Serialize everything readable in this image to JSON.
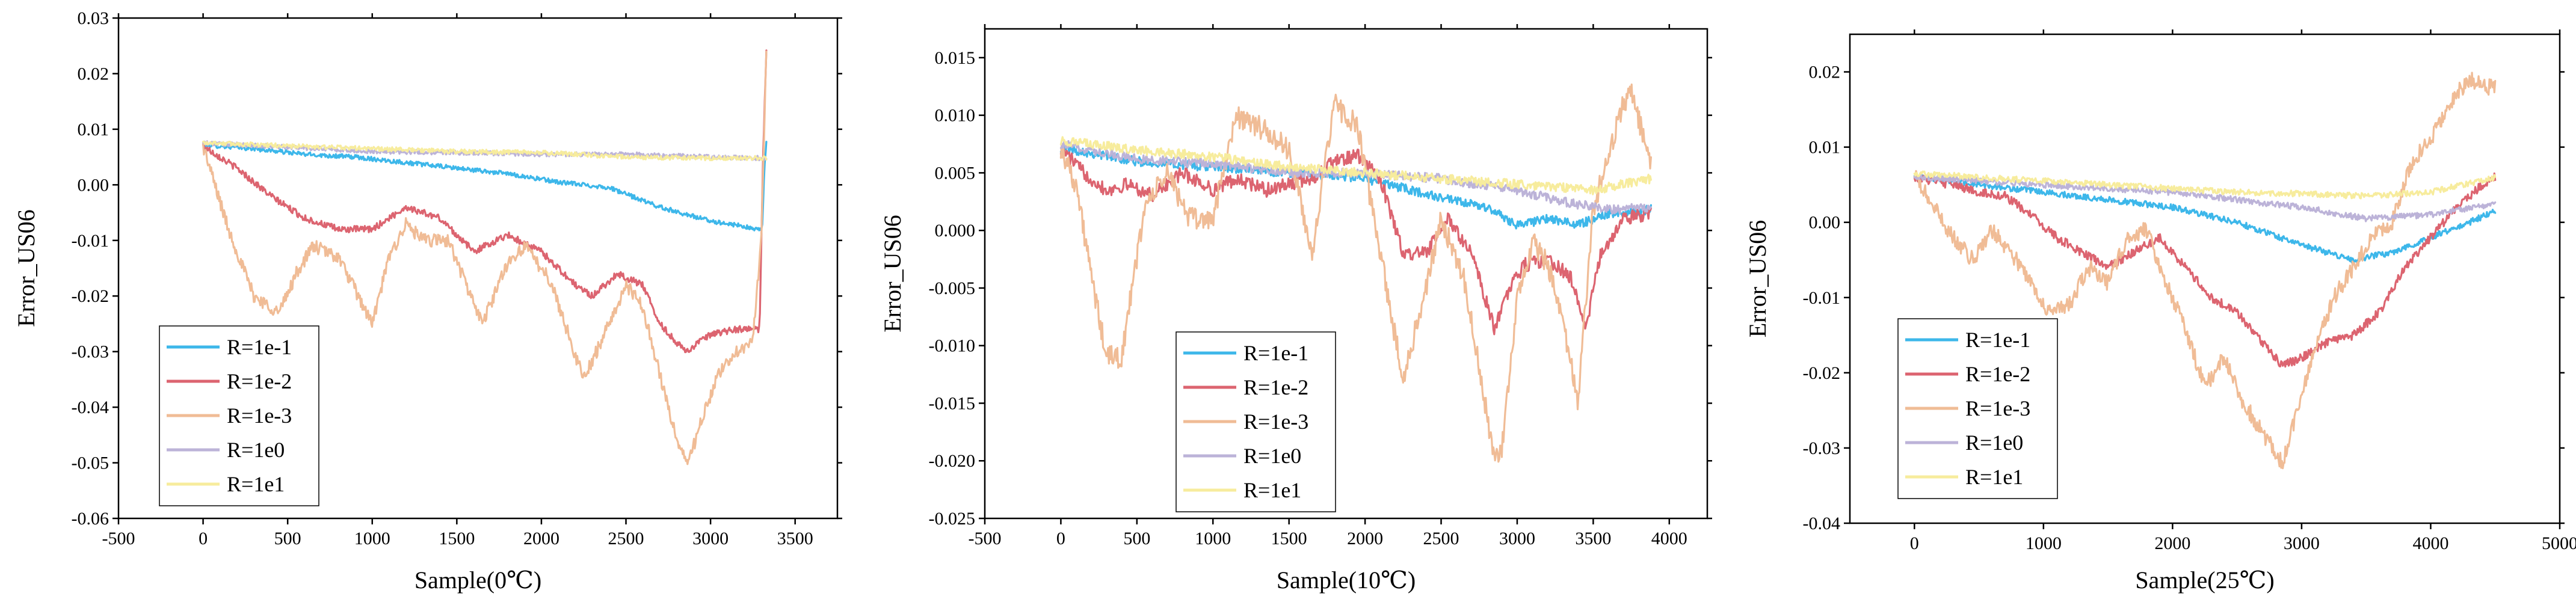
{
  "chart_data": [
    {
      "type": "line",
      "title": "",
      "xlabel": "Sample(0℃)",
      "ylabel": "Error_US06",
      "xlim": [
        -500,
        3750
      ],
      "ylim": [
        -0.06,
        0.03
      ],
      "xticks": [
        -500,
        0,
        500,
        1000,
        1500,
        2000,
        2500,
        3000,
        3500
      ],
      "xtick_labels": [
        "-500",
        "0",
        "500",
        "1000",
        "1500",
        "2000",
        "2500",
        "3000",
        "3500"
      ],
      "yticks": [
        -0.06,
        -0.05,
        -0.04,
        -0.03,
        -0.02,
        -0.01,
        0.0,
        0.01,
        0.02,
        0.03
      ],
      "ytick_labels": [
        "-0.06",
        "-0.05",
        "-0.04",
        "-0.03",
        "-0.02",
        "-0.01",
        "0.00",
        "0.01",
        "0.02",
        "0.03"
      ],
      "grid": false,
      "legend_position": "bottom-left",
      "series": [
        {
          "name": "R=1e-1",
          "color": "#3db7ea",
          "noise": 0.0004,
          "x": [
            0,
            300,
            600,
            900,
            1200,
            1500,
            1800,
            2100,
            2400,
            2700,
            3000,
            3200,
            3290,
            3305,
            3320,
            3330
          ],
          "y": [
            0.0072,
            0.0065,
            0.0055,
            0.005,
            0.004,
            0.003,
            0.002,
            0.0005,
            -0.0005,
            -0.004,
            -0.0065,
            -0.0075,
            -0.0082,
            -0.008,
            0.004,
            0.0075
          ]
        },
        {
          "name": "R=1e-2",
          "color": "#dc6470",
          "noise": 0.0006,
          "x": [
            0,
            200,
            400,
            600,
            800,
            1000,
            1200,
            1400,
            1600,
            1800,
            2000,
            2200,
            2300,
            2450,
            2600,
            2700,
            2850,
            3000,
            3150,
            3290,
            3310,
            3330
          ],
          "y": [
            0.007,
            0.003,
            -0.002,
            -0.006,
            -0.008,
            -0.008,
            -0.004,
            -0.006,
            -0.012,
            -0.009,
            -0.012,
            -0.018,
            -0.02,
            -0.016,
            -0.018,
            -0.025,
            -0.03,
            -0.027,
            -0.026,
            -0.026,
            0.005,
            0.024
          ]
        },
        {
          "name": "R=1e-3",
          "color": "#f0bc96",
          "noise": 0.0012,
          "x": [
            0,
            150,
            300,
            450,
            550,
            650,
            800,
            1000,
            1100,
            1200,
            1300,
            1450,
            1650,
            1800,
            1900,
            2050,
            2250,
            2400,
            2500,
            2600,
            2700,
            2800,
            2870,
            2950,
            3050,
            3150,
            3250,
            3300,
            3330
          ],
          "y": [
            0.007,
            -0.008,
            -0.02,
            -0.023,
            -0.016,
            -0.011,
            -0.013,
            -0.025,
            -0.013,
            -0.007,
            -0.01,
            -0.01,
            -0.025,
            -0.014,
            -0.011,
            -0.017,
            -0.035,
            -0.025,
            -0.018,
            -0.022,
            -0.034,
            -0.046,
            -0.05,
            -0.042,
            -0.034,
            -0.03,
            -0.028,
            -0.01,
            0.024
          ]
        },
        {
          "name": "R=1e0",
          "color": "#bcb3d8",
          "noise": 0.0004,
          "x": [
            0,
            500,
            1000,
            1500,
            2000,
            2500,
            3000,
            3330
          ],
          "y": [
            0.0075,
            0.0068,
            0.006,
            0.0058,
            0.0055,
            0.0055,
            0.005,
            0.0048
          ]
        },
        {
          "name": "R=1e1",
          "color": "#f7ec9d",
          "noise": 0.0004,
          "x": [
            0,
            500,
            1000,
            1500,
            2000,
            2500,
            3000,
            3330
          ],
          "y": [
            0.0076,
            0.007,
            0.0065,
            0.006,
            0.0058,
            0.005,
            0.0048,
            0.0048
          ]
        }
      ]
    },
    {
      "type": "line",
      "title": "",
      "xlabel": "Sample(10℃)",
      "ylabel": "Error_US06",
      "xlim": [
        -500,
        4250
      ],
      "ylim": [
        -0.025,
        0.0175
      ],
      "xticks": [
        -500,
        0,
        500,
        1000,
        1500,
        2000,
        2500,
        3000,
        3500,
        4000
      ],
      "xtick_labels": [
        "-500",
        "0",
        "500",
        "1000",
        "1500",
        "2000",
        "2500",
        "3000",
        "3500",
        "4000"
      ],
      "yticks": [
        -0.025,
        -0.02,
        -0.015,
        -0.01,
        -0.005,
        0.0,
        0.005,
        0.01,
        0.015
      ],
      "ytick_labels": [
        "-0.025",
        "-0.020",
        "-0.015",
        "-0.010",
        "-0.005",
        "0.000",
        "0.005",
        "0.010",
        "0.015"
      ],
      "grid": false,
      "legend_position": "bottom-center",
      "series": [
        {
          "name": "R=1e-1",
          "color": "#3db7ea",
          "noise": 0.0004,
          "x": [
            0,
            500,
            1000,
            1500,
            2000,
            2300,
            2600,
            2800,
            3000,
            3200,
            3400,
            3600,
            3880
          ],
          "y": [
            0.0072,
            0.006,
            0.0055,
            0.005,
            0.0045,
            0.0035,
            0.0025,
            0.002,
            0.0005,
            0.001,
            0.0005,
            0.0015,
            0.0018
          ]
        },
        {
          "name": "R=1e-2",
          "color": "#dc6470",
          "noise": 0.0006,
          "x": [
            0,
            150,
            300,
            450,
            600,
            800,
            1000,
            1150,
            1350,
            1500,
            1650,
            1800,
            1950,
            2100,
            2250,
            2400,
            2550,
            2700,
            2850,
            2950,
            3050,
            3200,
            3350,
            3450,
            3550,
            3700,
            3880
          ],
          "y": [
            0.0072,
            0.005,
            0.0035,
            0.004,
            0.003,
            0.005,
            0.0035,
            0.0045,
            0.0035,
            0.004,
            0.0045,
            0.006,
            0.0065,
            0.0045,
            -0.002,
            -0.002,
            0.001,
            -0.002,
            -0.0085,
            -0.005,
            -0.003,
            -0.0025,
            -0.004,
            -0.0085,
            -0.002,
            0.001,
            0.0015
          ]
        },
        {
          "name": "R=1e-3",
          "color": "#f0bc96",
          "noise": 0.001,
          "x": [
            0,
            100,
            200,
            300,
            400,
            550,
            700,
            850,
            1000,
            1150,
            1300,
            1500,
            1650,
            1800,
            1950,
            2100,
            2250,
            2400,
            2500,
            2650,
            2750,
            2850,
            2900,
            3000,
            3100,
            3200,
            3300,
            3400,
            3500,
            3600,
            3700,
            3750,
            3800,
            3880
          ],
          "y": [
            0.0072,
            0.004,
            -0.004,
            -0.011,
            -0.011,
            0.002,
            0.005,
            0.001,
            0.001,
            0.01,
            0.009,
            0.007,
            -0.002,
            0.011,
            0.009,
            -0.002,
            -0.013,
            -0.005,
            0.001,
            -0.004,
            -0.012,
            -0.02,
            -0.019,
            -0.006,
            -0.001,
            -0.003,
            -0.008,
            -0.015,
            0.002,
            0.0065,
            0.011,
            0.012,
            0.0095,
            0.006
          ]
        },
        {
          "name": "R=1e0",
          "color": "#bcb3d8",
          "noise": 0.0004,
          "x": [
            0,
            500,
            1000,
            1500,
            2000,
            2500,
            3000,
            3300,
            3600,
            3880
          ],
          "y": [
            0.0075,
            0.0062,
            0.0058,
            0.005,
            0.005,
            0.0045,
            0.0035,
            0.0025,
            0.0018,
            0.002
          ]
        },
        {
          "name": "R=1e1",
          "color": "#f7ec9d",
          "noise": 0.0004,
          "x": [
            0,
            500,
            1000,
            1500,
            2000,
            2500,
            3000,
            3500,
            3880
          ],
          "y": [
            0.0078,
            0.007,
            0.0064,
            0.0055,
            0.005,
            0.0045,
            0.004,
            0.0035,
            0.0045
          ]
        }
      ]
    },
    {
      "type": "line",
      "title": "",
      "xlabel": "Sample(25℃)",
      "ylabel": "Error_US06",
      "xlim": [
        -500,
        5000
      ],
      "ylim": [
        -0.04,
        0.025
      ],
      "xticks": [
        0,
        1000,
        2000,
        3000,
        4000,
        5000
      ],
      "xtick_labels": [
        "0",
        "1000",
        "2000",
        "3000",
        "4000",
        "5000"
      ],
      "yticks": [
        -0.04,
        -0.03,
        -0.02,
        -0.01,
        0.0,
        0.01,
        0.02
      ],
      "ytick_labels": [
        "-0.04",
        "-0.03",
        "-0.02",
        "-0.01",
        "0.00",
        "0.01",
        "0.02"
      ],
      "grid": false,
      "legend_position": "bottom-left",
      "series": [
        {
          "name": "R=1e-1",
          "color": "#3db7ea",
          "noise": 0.0004,
          "x": [
            0,
            500,
            1000,
            1500,
            2000,
            2500,
            3000,
            3400,
            3700,
            4000,
            4300,
            4500
          ],
          "y": [
            0.0062,
            0.005,
            0.004,
            0.003,
            0.002,
            0.0,
            -0.003,
            -0.005,
            -0.004,
            -0.002,
            0.0,
            0.0015
          ]
        },
        {
          "name": "R=1e-2",
          "color": "#dc6470",
          "noise": 0.0006,
          "x": [
            0,
            300,
            500,
            700,
            900,
            1100,
            1300,
            1500,
            1700,
            1900,
            2100,
            2300,
            2500,
            2700,
            2850,
            3000,
            3200,
            3400,
            3600,
            3800,
            4000,
            4200,
            4400,
            4500
          ],
          "y": [
            0.006,
            0.005,
            0.004,
            0.0035,
            0.001,
            -0.002,
            -0.004,
            -0.006,
            -0.004,
            -0.002,
            -0.006,
            -0.01,
            -0.012,
            -0.016,
            -0.019,
            -0.018,
            -0.016,
            -0.015,
            -0.012,
            -0.006,
            -0.002,
            0.002,
            0.005,
            0.0062
          ]
        },
        {
          "name": "R=1e-3",
          "color": "#f0bc96",
          "noise": 0.0011,
          "x": [
            0,
            150,
            300,
            450,
            600,
            750,
            900,
            1050,
            1200,
            1350,
            1500,
            1650,
            1800,
            1950,
            2100,
            2250,
            2400,
            2550,
            2700,
            2850,
            2950,
            3100,
            3250,
            3400,
            3550,
            3700,
            3850,
            4000,
            4150,
            4300,
            4450,
            4500
          ],
          "y": [
            0.0062,
            0.002,
            -0.002,
            -0.005,
            -0.001,
            -0.004,
            -0.008,
            -0.012,
            -0.011,
            -0.006,
            -0.008,
            -0.002,
            -0.001,
            -0.008,
            -0.014,
            -0.022,
            -0.018,
            -0.024,
            -0.028,
            -0.032,
            -0.026,
            -0.017,
            -0.01,
            -0.006,
            -0.002,
            0.0,
            0.008,
            0.011,
            0.016,
            0.019,
            0.018,
            0.018
          ]
        },
        {
          "name": "R=1e0",
          "color": "#bcb3d8",
          "noise": 0.0004,
          "x": [
            0,
            500,
            1000,
            1500,
            2000,
            2500,
            3000,
            3500,
            4000,
            4500
          ],
          "y": [
            0.006,
            0.0055,
            0.005,
            0.0045,
            0.004,
            0.003,
            0.002,
            0.0005,
            0.001,
            0.0025
          ]
        },
        {
          "name": "R=1e1",
          "color": "#f7ec9d",
          "noise": 0.0004,
          "x": [
            0,
            500,
            1000,
            1500,
            2000,
            2500,
            3000,
            3500,
            4000,
            4500
          ],
          "y": [
            0.0065,
            0.006,
            0.0055,
            0.005,
            0.0045,
            0.004,
            0.0038,
            0.0035,
            0.004,
            0.006
          ]
        }
      ]
    }
  ]
}
